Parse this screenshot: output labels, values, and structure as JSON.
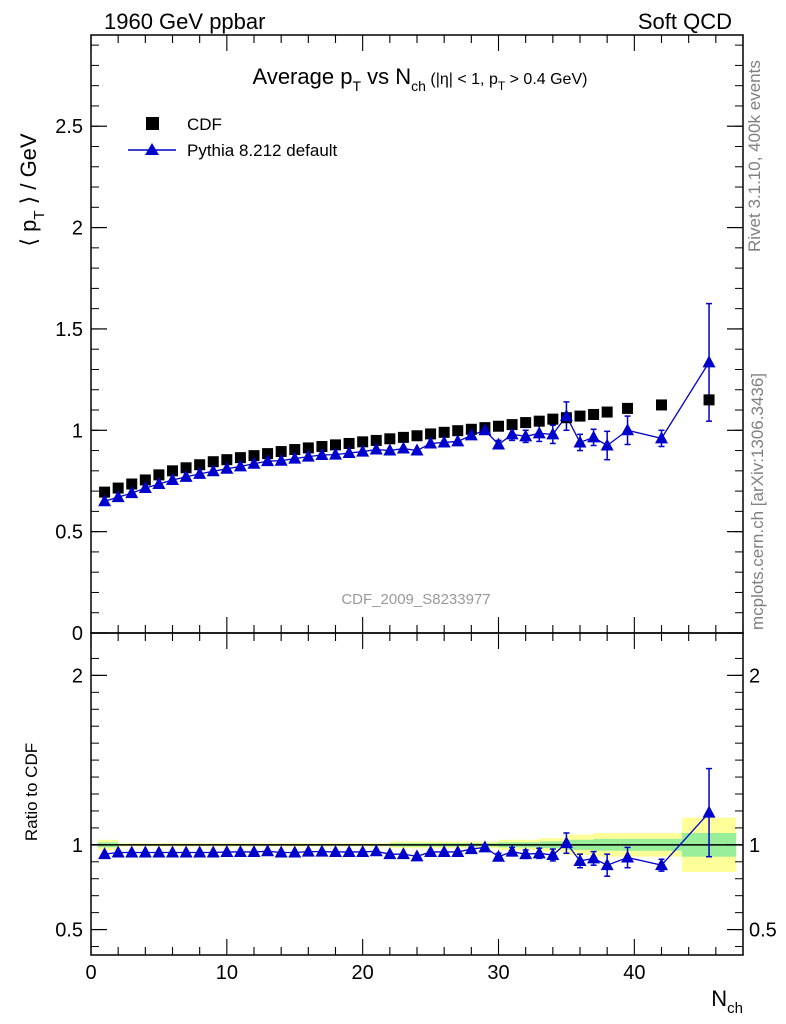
{
  "header": {
    "left": "1960 GeV ppbar",
    "right": "Soft QCD"
  },
  "side_text": {
    "rivet": "Rivet 3.1.10,  400k events",
    "mcplots": "mcplots.cern.ch [arXiv:1306.3436]"
  },
  "chart_data": [
    {
      "type": "scatter",
      "panel": "main",
      "title": "Average p_T vs N_ch (|η| < 1, p_T > 0.4 GeV)",
      "title_parts": {
        "a": "Average p",
        "b": "T",
        "c": " vs N",
        "d": "ch",
        "e": " (|η| < 1, p",
        "f": "T",
        "g": " > 0.4 GeV)"
      },
      "ylabel_parts": {
        "a": "⟨ p",
        "b": "T",
        "c": " ⟩ / GeV"
      },
      "xlim": [
        0,
        48
      ],
      "ylim": [
        0,
        2.95
      ],
      "yticks": [
        {
          "v": 0,
          "label": "0"
        },
        {
          "v": 0.5,
          "label": "0.5"
        },
        {
          "v": 1,
          "label": "1"
        },
        {
          "v": 1.5,
          "label": "1.5"
        },
        {
          "v": 2,
          "label": "2"
        },
        {
          "v": 2.5,
          "label": "2.5"
        }
      ],
      "watermark": "CDF_2009_S8233977",
      "legend": [
        {
          "name": "CDF",
          "marker": "square",
          "color": "#000000"
        },
        {
          "name": "Pythia 8.212 default",
          "marker": "triangle",
          "color": "#0000cc"
        }
      ],
      "series": [
        {
          "name": "CDF",
          "color": "#000000",
          "points": [
            [
              1,
              0.695
            ],
            [
              2,
              0.715
            ],
            [
              3,
              0.735
            ],
            [
              4,
              0.755
            ],
            [
              5,
              0.78
            ],
            [
              6,
              0.8
            ],
            [
              7,
              0.815
            ],
            [
              8,
              0.83
            ],
            [
              9,
              0.845
            ],
            [
              10,
              0.855
            ],
            [
              11,
              0.865
            ],
            [
              12,
              0.875
            ],
            [
              13,
              0.885
            ],
            [
              14,
              0.895
            ],
            [
              15,
              0.905
            ],
            [
              16,
              0.913
            ],
            [
              17,
              0.92
            ],
            [
              18,
              0.928
            ],
            [
              19,
              0.935
            ],
            [
              20,
              0.943
            ],
            [
              21,
              0.95
            ],
            [
              22,
              0.958
            ],
            [
              23,
              0.965
            ],
            [
              24,
              0.973
            ],
            [
              25,
              0.982
            ],
            [
              26,
              0.99
            ],
            [
              27,
              0.998
            ],
            [
              28,
              1.005
            ],
            [
              29,
              1.013
            ],
            [
              30,
              1.02
            ],
            [
              31,
              1.028
            ],
            [
              32,
              1.038
            ],
            [
              33,
              1.045
            ],
            [
              34,
              1.055
            ],
            [
              35,
              1.062
            ],
            [
              36,
              1.07
            ],
            [
              37,
              1.078
            ],
            [
              38,
              1.09
            ],
            [
              39.5,
              1.108
            ],
            [
              42,
              1.125
            ],
            [
              45.5,
              1.15
            ]
          ]
        },
        {
          "name": "Pythia 8.212 default",
          "color": "#0000cc",
          "points": [
            [
              1,
              0.65,
              0
            ],
            [
              2,
              0.67,
              0
            ],
            [
              3,
              0.69,
              0
            ],
            [
              4,
              0.715,
              0
            ],
            [
              5,
              0.735,
              0
            ],
            [
              6,
              0.755,
              0
            ],
            [
              7,
              0.77,
              0
            ],
            [
              8,
              0.785,
              0
            ],
            [
              9,
              0.798,
              0
            ],
            [
              10,
              0.81,
              0
            ],
            [
              11,
              0.822,
              0
            ],
            [
              12,
              0.835,
              0
            ],
            [
              13,
              0.848,
              0
            ],
            [
              14,
              0.85,
              0
            ],
            [
              15,
              0.86,
              0
            ],
            [
              16,
              0.87,
              0
            ],
            [
              17,
              0.878,
              0
            ],
            [
              18,
              0.88,
              0
            ],
            [
              19,
              0.888,
              0
            ],
            [
              20,
              0.895,
              0
            ],
            [
              21,
              0.905,
              0
            ],
            [
              22,
              0.9,
              0
            ],
            [
              23,
              0.91,
              0
            ],
            [
              24,
              0.9,
              0
            ],
            [
              25,
              0.935,
              0
            ],
            [
              26,
              0.94,
              0
            ],
            [
              27,
              0.945,
              0
            ],
            [
              28,
              0.975,
              0.015
            ],
            [
              29,
              1.0,
              0.015
            ],
            [
              30,
              0.93,
              0.02
            ],
            [
              31,
              0.98,
              0.03
            ],
            [
              32,
              0.97,
              0.03
            ],
            [
              33,
              0.985,
              0.04
            ],
            [
              34,
              0.98,
              0.045
            ],
            [
              35,
              1.07,
              0.07
            ],
            [
              36,
              0.94,
              0.04
            ],
            [
              37,
              0.965,
              0.04
            ],
            [
              38,
              0.925,
              0.07
            ],
            [
              39.5,
              1.0,
              0.07
            ],
            [
              42,
              0.96,
              0.04
            ],
            [
              45.5,
              1.335,
              0.29
            ]
          ]
        }
      ]
    },
    {
      "type": "scatter",
      "panel": "ratio",
      "ylabel": "Ratio to CDF",
      "xlabel": "N_ch",
      "xlabel_parts": {
        "a": "N",
        "b": "ch"
      },
      "xlim": [
        0,
        48
      ],
      "ylim": [
        0.35,
        2.25
      ],
      "xticks": [
        {
          "v": 0,
          "label": "0"
        },
        {
          "v": 10,
          "label": "10"
        },
        {
          "v": 20,
          "label": "20"
        },
        {
          "v": 30,
          "label": "30"
        },
        {
          "v": 40,
          "label": "40"
        }
      ],
      "yticks": [
        {
          "v": 0.5,
          "label": "0.5"
        },
        {
          "v": 1,
          "label": "1"
        },
        {
          "v": 2,
          "label": "2"
        }
      ],
      "bands": [
        {
          "x": [
            0.5,
            2
          ],
          "green": 0.015,
          "yellow": 0.03
        },
        {
          "x": [
            2,
            22
          ],
          "green": 0.005,
          "yellow": 0.01
        },
        {
          "x": [
            22,
            30
          ],
          "green": 0.01,
          "yellow": 0.02
        },
        {
          "x": [
            30,
            33
          ],
          "green": 0.015,
          "yellow": 0.03
        },
        {
          "x": [
            33,
            35
          ],
          "green": 0.02,
          "yellow": 0.04
        },
        {
          "x": [
            35,
            37
          ],
          "green": 0.03,
          "yellow": 0.06
        },
        {
          "x": [
            37,
            39
          ],
          "green": 0.035,
          "yellow": 0.07
        },
        {
          "x": [
            39,
            43.5
          ],
          "green": 0.035,
          "yellow": 0.07
        },
        {
          "x": [
            43.5,
            47.5
          ],
          "green": 0.07,
          "yellow": 0.16
        }
      ],
      "series": [
        {
          "name": "Pythia 8.212 default / CDF",
          "color": "#0000cc",
          "points": [
            [
              1,
              0.945,
              0
            ],
            [
              2,
              0.955,
              0
            ],
            [
              3,
              0.955,
              0
            ],
            [
              4,
              0.955,
              0
            ],
            [
              5,
              0.955,
              0
            ],
            [
              6,
              0.955,
              0
            ],
            [
              7,
              0.955,
              0
            ],
            [
              8,
              0.955,
              0
            ],
            [
              9,
              0.955,
              0
            ],
            [
              10,
              0.958,
              0
            ],
            [
              11,
              0.958,
              0
            ],
            [
              12,
              0.958,
              0
            ],
            [
              13,
              0.962,
              0
            ],
            [
              14,
              0.955,
              0
            ],
            [
              15,
              0.955,
              0
            ],
            [
              16,
              0.96,
              0
            ],
            [
              17,
              0.96,
              0
            ],
            [
              18,
              0.958,
              0
            ],
            [
              19,
              0.958,
              0
            ],
            [
              20,
              0.958,
              0
            ],
            [
              21,
              0.962,
              0
            ],
            [
              22,
              0.945,
              0
            ],
            [
              23,
              0.945,
              0
            ],
            [
              24,
              0.932,
              0
            ],
            [
              25,
              0.958,
              0
            ],
            [
              26,
              0.958,
              0
            ],
            [
              27,
              0.958,
              0
            ],
            [
              28,
              0.975,
              0.01
            ],
            [
              29,
              0.985,
              0.015
            ],
            [
              30,
              0.93,
              0.02
            ],
            [
              31,
              0.96,
              0.025
            ],
            [
              32,
              0.945,
              0.025
            ],
            [
              33,
              0.95,
              0.03
            ],
            [
              34,
              0.94,
              0.035
            ],
            [
              35,
              1.01,
              0.06
            ],
            [
              36,
              0.905,
              0.04
            ],
            [
              37,
              0.92,
              0.04
            ],
            [
              38,
              0.88,
              0.065
            ],
            [
              39.5,
              0.925,
              0.06
            ],
            [
              42,
              0.88,
              0.035
            ],
            [
              45.5,
              1.19,
              0.26
            ]
          ]
        }
      ]
    }
  ]
}
